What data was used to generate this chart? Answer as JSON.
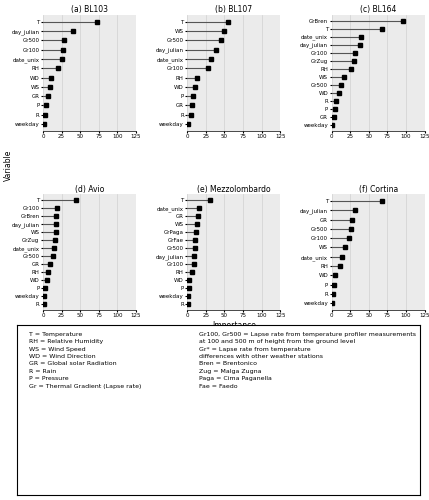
{
  "panels": [
    {
      "label": "(a) BL103",
      "variables": [
        "T",
        "day_julian",
        "Gr500",
        "Gr100",
        "date_unix",
        "RH",
        "WD",
        "WS",
        "GR",
        "P",
        "R",
        "weekday"
      ],
      "importance": [
        72,
        40,
        28,
        27,
        26,
        20,
        11,
        9,
        7,
        4,
        3,
        1
      ]
    },
    {
      "label": "(b) BL107",
      "variables": [
        "T",
        "WS",
        "Gr500",
        "day_julian",
        "date_unix",
        "Gr100",
        "RH",
        "WD",
        "P",
        "GR",
        "R",
        "weekday"
      ],
      "importance": [
        55,
        50,
        45,
        38,
        32,
        28,
        13,
        10,
        8,
        7,
        5,
        1
      ]
    },
    {
      "label": "(c) BL164",
      "variables": [
        "GrBren",
        "T",
        "date_unix",
        "day_julian",
        "Gr100",
        "GrZug",
        "RH",
        "WS",
        "Gr500",
        "WD",
        "R",
        "P",
        "GR",
        "weekday"
      ],
      "importance": [
        96,
        68,
        40,
        38,
        32,
        30,
        26,
        16,
        13,
        10,
        6,
        5,
        3,
        1
      ]
    },
    {
      "label": "(d) Avio",
      "variables": [
        "T",
        "Gr100",
        "GrBren",
        "day_julian",
        "WS",
        "GrZug",
        "date_unix",
        "Gr500",
        "GR",
        "RH",
        "WD",
        "P",
        "weekday",
        "R"
      ],
      "importance": [
        45,
        19,
        17,
        17,
        17,
        16,
        15,
        13,
        9,
        7,
        5,
        3,
        1,
        1
      ]
    },
    {
      "label": "(e) Mezzolombardo",
      "variables": [
        "T",
        "date_unix",
        "GR",
        "WS",
        "GrPaga",
        "GrFae",
        "Gr500",
        "day_julian",
        "Gr100",
        "RH",
        "WD",
        "P",
        "weekday",
        "R"
      ],
      "importance": [
        30,
        16,
        14,
        13,
        12,
        11,
        10,
        9,
        9,
        7,
        3,
        2,
        1,
        1
      ]
    },
    {
      "label": "(f) Cortina",
      "variables": [
        "T",
        "day_julian",
        "GR",
        "Gr500",
        "Gr100",
        "WS",
        "date_unix",
        "RH",
        "WD",
        "P",
        "R",
        "weekday"
      ],
      "importance": [
        68,
        32,
        28,
        26,
        24,
        18,
        14,
        11,
        4,
        3,
        2,
        1
      ]
    }
  ],
  "xlim": [
    0,
    125
  ],
  "xticks": [
    0,
    25,
    50,
    75,
    100,
    125
  ],
  "line_color": "#555555",
  "marker_color": "black",
  "grid_color": "#d0d0d0",
  "bg_color": "#ebebeb",
  "legend_text_left": "T = Temperature\nRH = Relative Humidity\nWS = Wind Speed\nWD = Wind Direction\nGR = Global solar Radiation\nR = Rain\nP = Pressure\nGr = Thermal Gradient (Lapse rate)",
  "legend_text_right": "Gr100, Gr500 = Lapse rate from temperature profiler measurements\nat 100 and 500 m of height from the ground level\nGr* = Lapse rate from temperature\ndifferences with other weather stations\nBren = Brentonico\nZug = Malga Zugna\nPaga = Cima Paganella\nFae = Faedo"
}
